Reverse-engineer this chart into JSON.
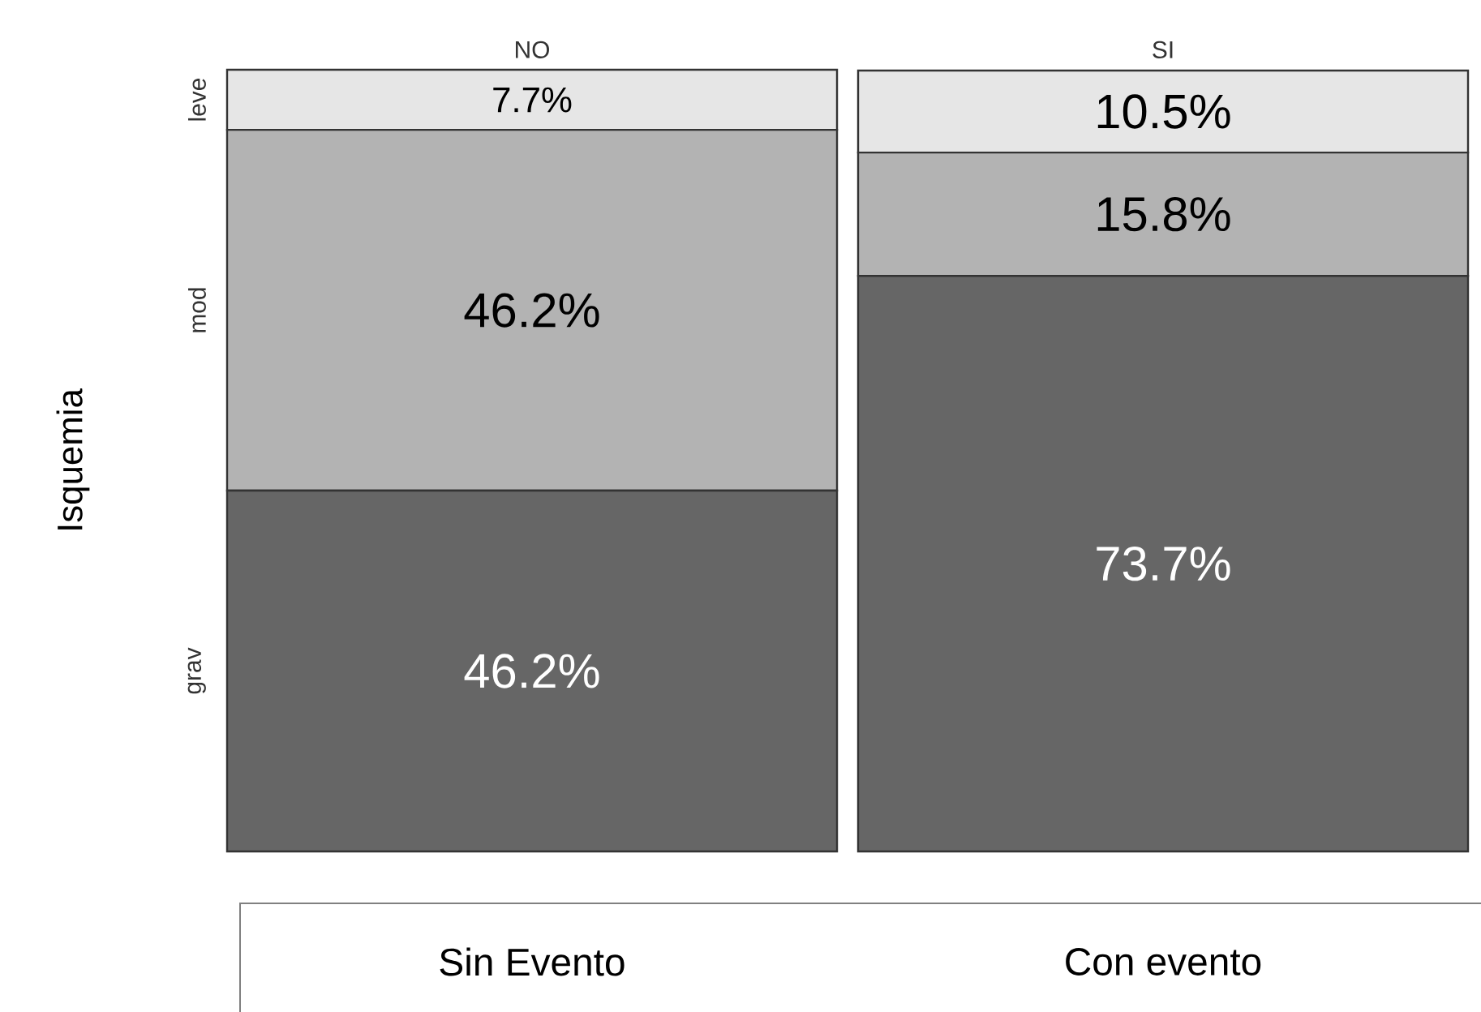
{
  "chart_data": {
    "type": "bar",
    "stacked": true,
    "ylabel": "Isquemia",
    "categories": [
      "NO",
      "SI"
    ],
    "series": [
      {
        "name": "grav",
        "color": "#666666",
        "values": [
          46.2,
          73.7
        ],
        "value_labels": [
          "46.2%",
          "73.7%"
        ]
      },
      {
        "name": "mod",
        "color": "#b3b3b3",
        "values": [
          46.2,
          15.8
        ],
        "value_labels": [
          "46.2%",
          "15.8%"
        ]
      },
      {
        "name": "leve",
        "color": "#e6e6e6",
        "values": [
          7.7,
          10.5
        ],
        "value_labels": [
          "7.7%",
          "10.5%"
        ]
      }
    ],
    "annotations": [
      "Sin Evento",
      "Con evento"
    ]
  }
}
